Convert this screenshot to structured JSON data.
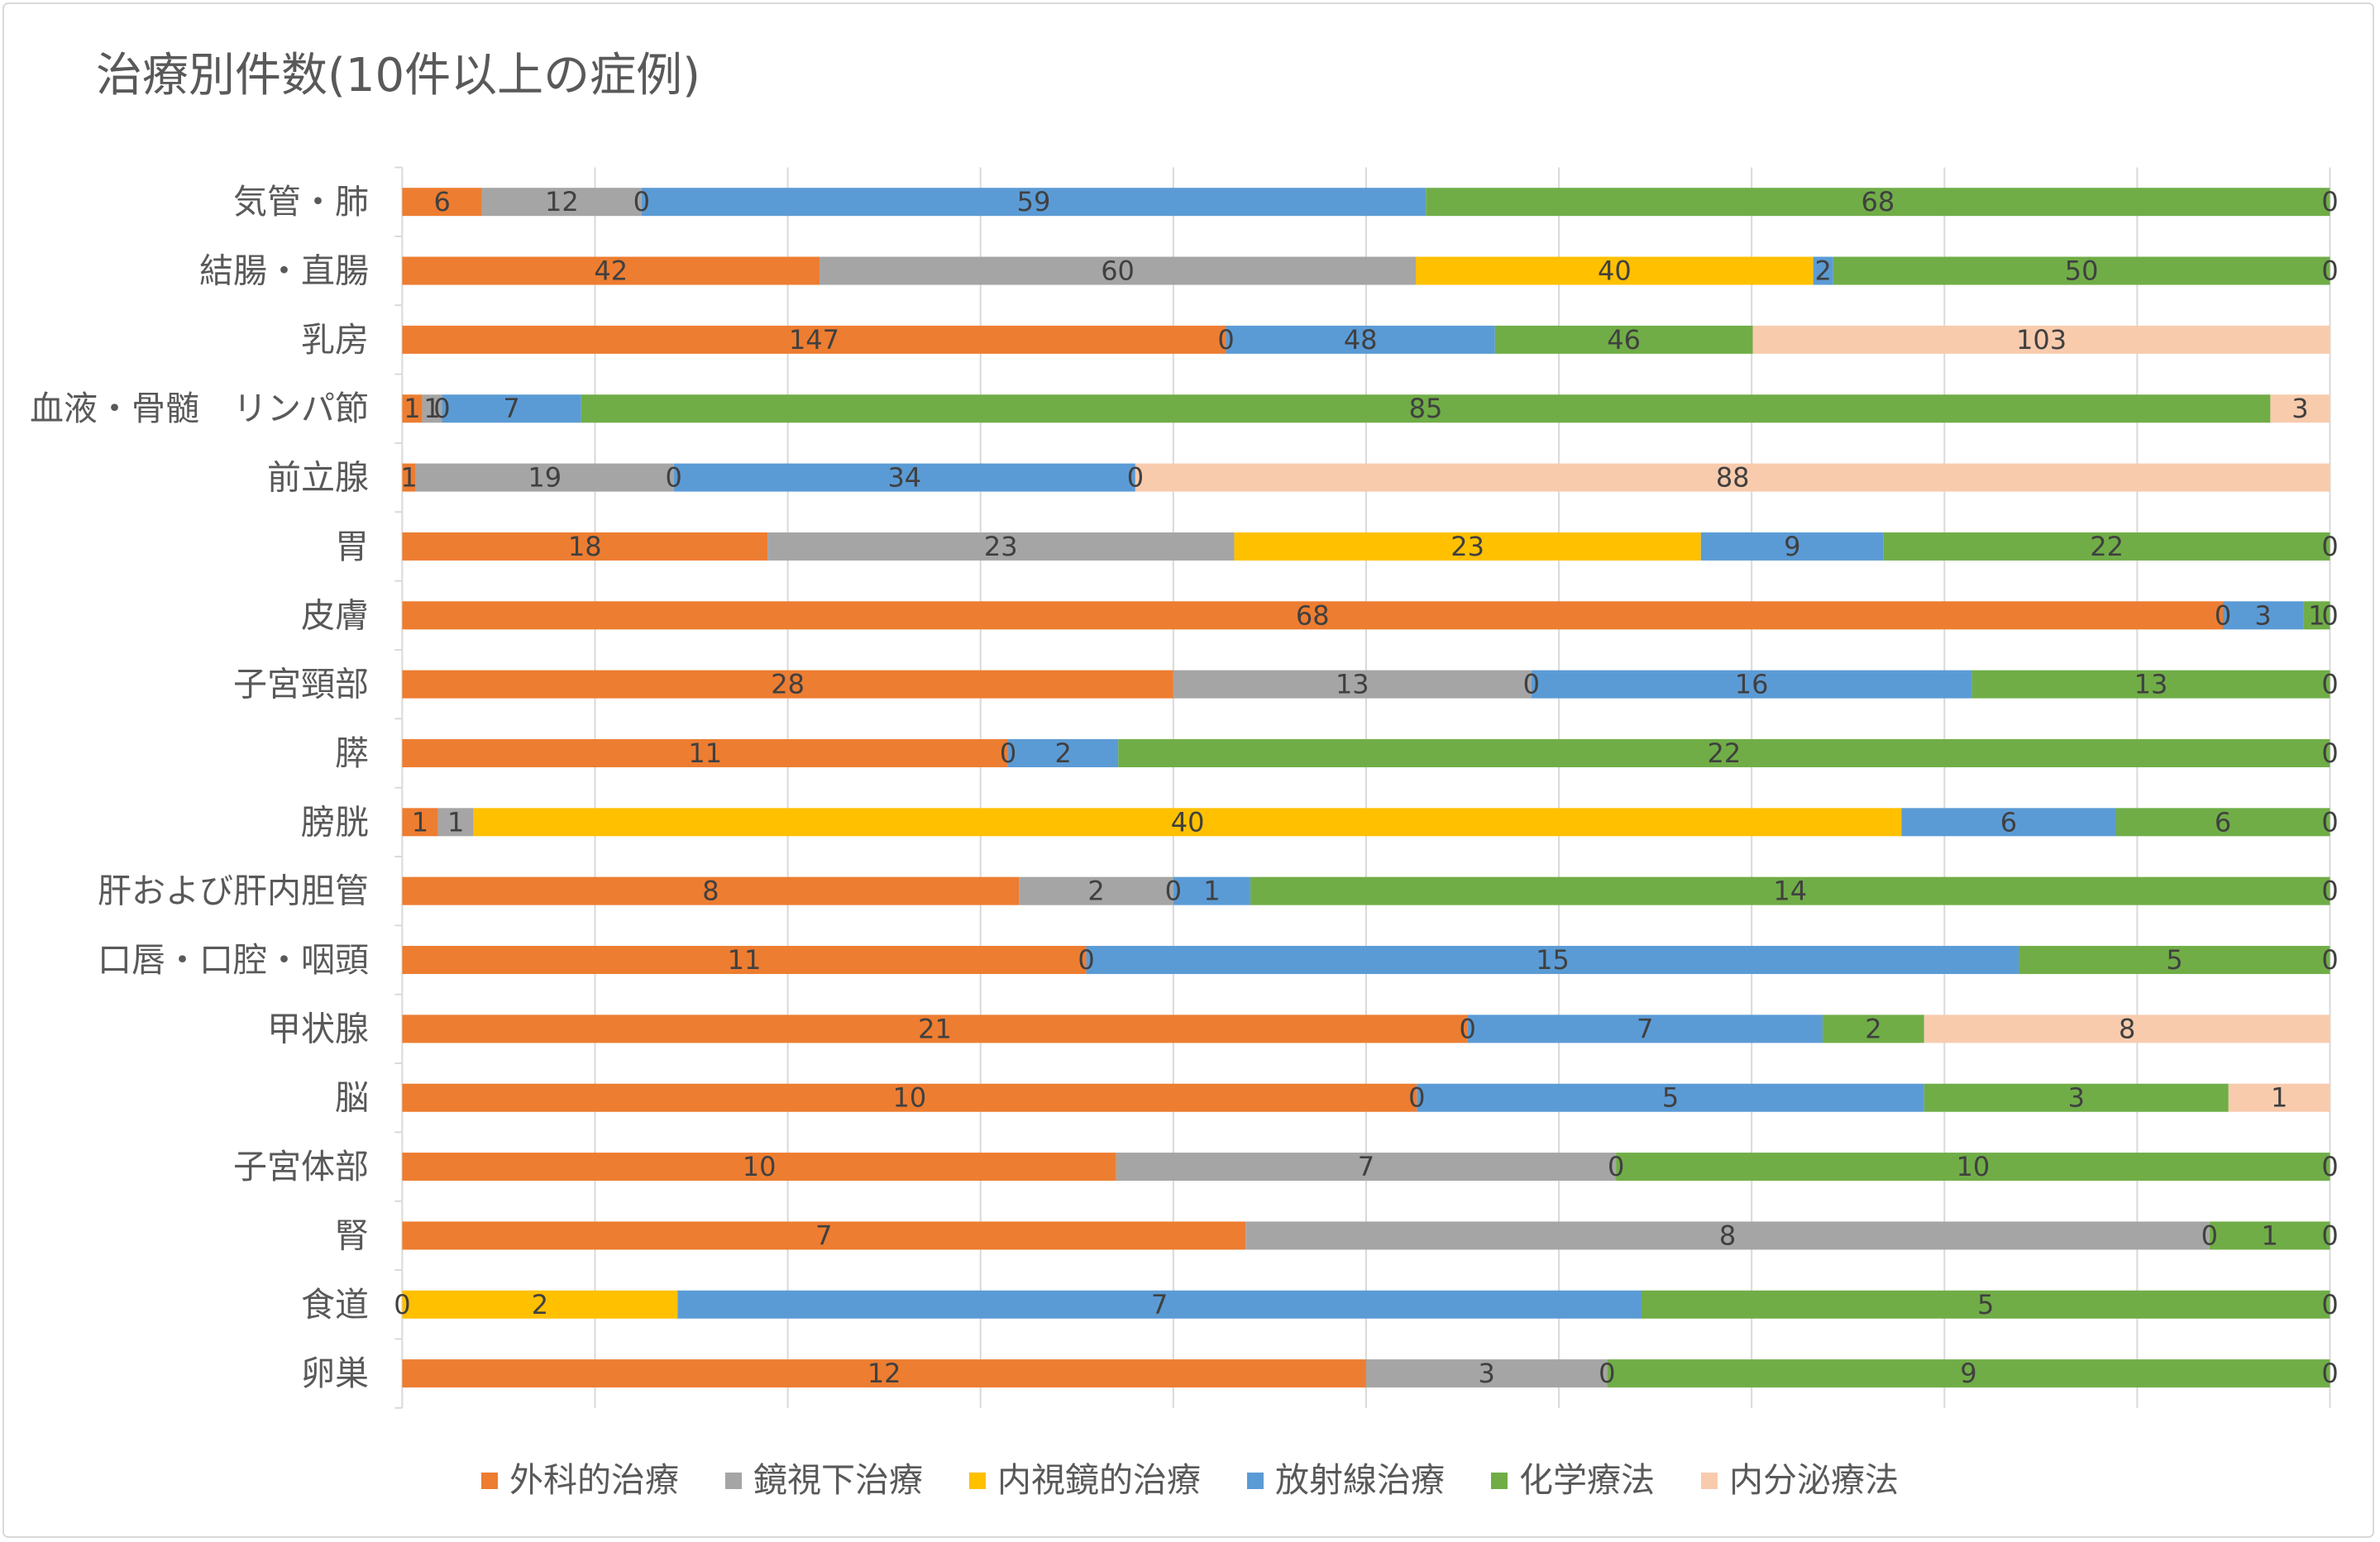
{
  "chart_data": {
    "type": "bar",
    "orientation": "horizontal",
    "stacking": "percent",
    "title": "治療別件数(10件以上の症例)",
    "xlim": [
      0,
      100
    ],
    "x_gridline_step": 10,
    "grid": true,
    "legend": "bottom",
    "categories": [
      "気管・肺",
      "結腸・直腸",
      "乳房",
      "血液・骨髄　リンパ節",
      "前立腺",
      "胃",
      "皮膚",
      "子宮頸部",
      "膵",
      "膀胱",
      "肝および肝内胆管",
      "口唇・口腔・咽頭",
      "甲状腺",
      "脳",
      "子宮体部",
      "腎",
      "食道",
      "卵巣"
    ],
    "series": [
      {
        "name": "外科的治療",
        "color": "#ED7D31",
        "values": [
          6,
          42,
          147,
          1,
          1,
          18,
          68,
          28,
          11,
          1,
          8,
          11,
          21,
          10,
          10,
          7,
          0,
          12
        ]
      },
      {
        "name": "鏡視下治療",
        "color": "#A5A5A5",
        "values": [
          12,
          60,
          0,
          1,
          19,
          23,
          0,
          13,
          0,
          1,
          2,
          0,
          0,
          0,
          7,
          8,
          null,
          3
        ]
      },
      {
        "name": "内視鏡的治療",
        "color": "#FFC000",
        "values": [
          0,
          40,
          null,
          0,
          0,
          23,
          null,
          0,
          null,
          40,
          0,
          null,
          null,
          null,
          null,
          null,
          2,
          null
        ]
      },
      {
        "name": "放射線治療",
        "color": "#5B9BD5",
        "values": [
          59,
          2,
          48,
          7,
          34,
          9,
          3,
          16,
          2,
          6,
          1,
          15,
          7,
          5,
          0,
          0,
          7,
          0
        ]
      },
      {
        "name": "化学療法",
        "color": "#70AD47",
        "values": [
          68,
          50,
          46,
          85,
          0,
          22,
          1,
          13,
          22,
          6,
          14,
          5,
          2,
          3,
          10,
          1,
          5,
          9
        ]
      },
      {
        "name": "内分泌療法",
        "color": "#F8CBAD",
        "values": [
          0,
          0,
          103,
          3,
          88,
          0,
          0,
          0,
          0,
          0,
          0,
          0,
          8,
          1,
          0,
          0,
          0,
          0
        ]
      }
    ]
  }
}
